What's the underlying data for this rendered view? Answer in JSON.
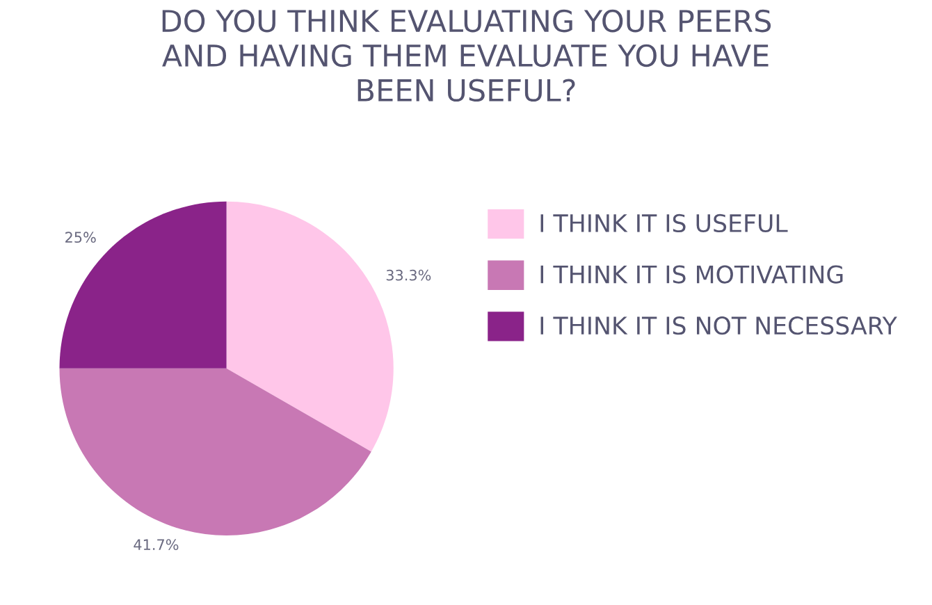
{
  "chart_data": {
    "type": "pie",
    "title": "DO YOU THINK EVALUATING YOUR PEERS\nAND HAVING THEM EVALUATE YOU HAVE\nBEEN USEFUL?",
    "categories": [
      "I THINK IT IS USEFUL",
      "I THINK IT IS MOTIVATING",
      "I THINK IT IS NOT NECESSARY"
    ],
    "values": [
      33.3,
      41.7,
      25
    ],
    "colors": [
      "#ffc6e9",
      "#c878b4",
      "#8a2389"
    ],
    "value_labels": [
      "33.3%",
      "41.7%",
      "25%"
    ],
    "legend": "right"
  }
}
